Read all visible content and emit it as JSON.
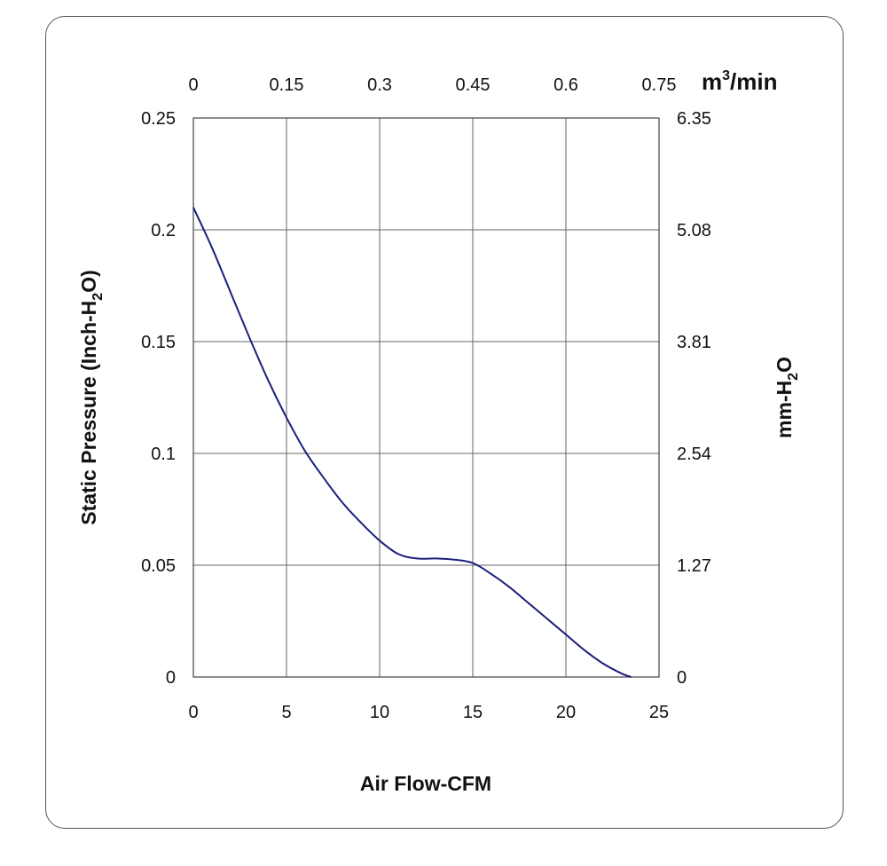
{
  "chart_data": {
    "type": "line",
    "series": [
      {
        "x": [
          0,
          1,
          2,
          3,
          4,
          5,
          6,
          7,
          8,
          9,
          10,
          11,
          12,
          13,
          14,
          15,
          16,
          17,
          18,
          19,
          20,
          21,
          22,
          23,
          23.5
        ],
        "values": [
          0.21,
          0.192,
          0.172,
          0.152,
          0.133,
          0.116,
          0.101,
          0.089,
          0.078,
          0.069,
          0.061,
          0.055,
          0.053,
          0.053,
          0.0525,
          0.051,
          0.046,
          0.04,
          0.033,
          0.026,
          0.019,
          0.012,
          0.006,
          0.0015,
          0
        ],
        "color": "#1b1f7a"
      }
    ],
    "xlabel": "Air Flow-CFM",
    "ylabel": "Static Pressure (Inch-H",
    "ylabel_sub": "2",
    "ylabel_end": "O)",
    "xlim": [
      0,
      25
    ],
    "ylim": [
      0,
      0.25
    ],
    "x_ticks": [
      "0",
      "5",
      "10",
      "15",
      "20",
      "25"
    ],
    "y_ticks": [
      "0",
      "0.05",
      "0.1",
      "0.15",
      "0.2",
      "0.25"
    ],
    "top_axis": {
      "ticks": [
        "0",
        "0.15",
        "0.3",
        "0.45",
        "0.6",
        "0.75"
      ],
      "unit": "m",
      "unit_sup": "3",
      "unit_end": "/min"
    },
    "right_axis": {
      "ticks": [
        "0",
        "1.27",
        "2.54",
        "3.81",
        "5.08",
        "6.35"
      ],
      "label": "mm-H",
      "label_sub": "2",
      "label_end": "O"
    },
    "grid": true
  }
}
